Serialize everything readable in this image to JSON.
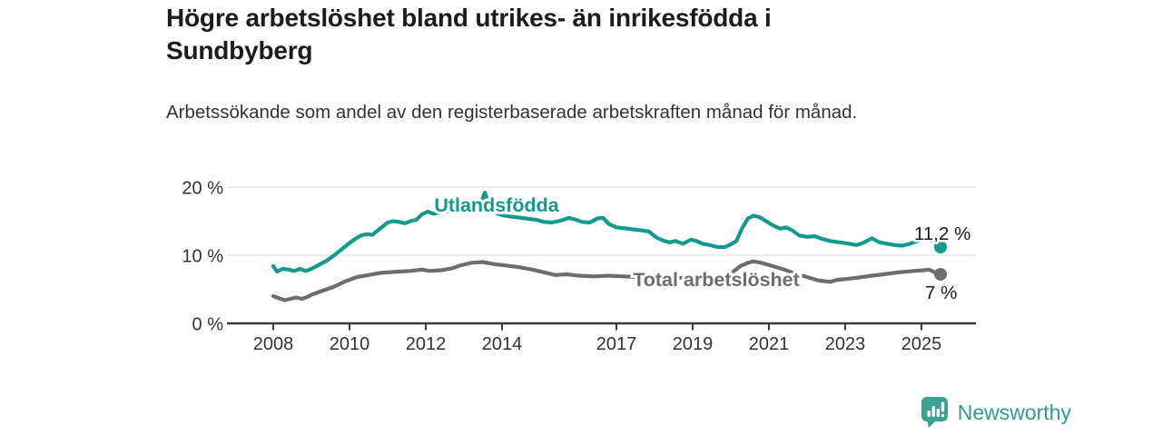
{
  "header": {
    "title": "Högre arbetslöshet bland utrikes- än inrikesfödda i Sundbyberg",
    "subtitle": "Arbetssökande som andel av den registerbaserade arbetskraften månad för månad."
  },
  "theme": {
    "teal": "#149a8c",
    "gray": "#6d6d6d",
    "axis": "#3a3a3a",
    "grid": "#e4e4e4",
    "tick_text": "#333333",
    "annotation_text": "#1a1a1a",
    "logo_icon_color": "#3ba191",
    "brand_text_color": "#2f9c8d"
  },
  "footer": {
    "brand": "Newsworthy",
    "logo_icon": "bar-chart-speech-bubble-icon"
  },
  "chart_data": {
    "type": "line",
    "title": "Högre arbetslöshet bland utrikes- än inrikesfödda i Sundbyberg",
    "subtitle": "Arbetssökande som andel av den registerbaserade arbetskraften månad för månad.",
    "unit": "%",
    "grid": true,
    "legend_position": "inline-labels",
    "x_axis": {
      "ticks": [
        2008,
        2010,
        2012,
        2014,
        2017,
        2019,
        2021,
        2023,
        2025
      ],
      "labels": [
        "2008",
        "2010",
        "2012",
        "2014",
        "2017",
        "2019",
        "2021",
        "2023",
        "2025"
      ],
      "range_years": [
        2007.8,
        2026.4
      ]
    },
    "y_axis": {
      "ticks": [
        0,
        10,
        20
      ],
      "labels": [
        "0 %",
        "10 %",
        "20 %"
      ],
      "range": [
        0,
        20
      ],
      "gridlines": [
        10,
        20
      ]
    },
    "series": [
      {
        "name": "Utlandsfödda",
        "color": "#149a8c",
        "end_label": "11,2 %",
        "end_value": 11.2,
        "points": [
          [
            2008.0,
            8.4
          ],
          [
            2008.1,
            7.6
          ],
          [
            2008.25,
            8.0
          ],
          [
            2008.4,
            7.9
          ],
          [
            2008.55,
            7.7
          ],
          [
            2008.7,
            8.0
          ],
          [
            2008.85,
            7.7
          ],
          [
            2009.0,
            8.0
          ],
          [
            2009.2,
            8.6
          ],
          [
            2009.4,
            9.2
          ],
          [
            2009.6,
            10.0
          ],
          [
            2009.8,
            10.9
          ],
          [
            2010.0,
            11.8
          ],
          [
            2010.15,
            12.4
          ],
          [
            2010.3,
            12.9
          ],
          [
            2010.45,
            13.1
          ],
          [
            2010.6,
            13.0
          ],
          [
            2010.8,
            13.9
          ],
          [
            2011.0,
            14.8
          ],
          [
            2011.15,
            15.0
          ],
          [
            2011.3,
            14.9
          ],
          [
            2011.45,
            14.7
          ],
          [
            2011.6,
            15.0
          ],
          [
            2011.75,
            15.2
          ],
          [
            2011.9,
            16.0
          ],
          [
            2012.05,
            16.4
          ],
          [
            2012.2,
            16.1
          ],
          [
            2012.4,
            16.3
          ],
          [
            2012.6,
            16.5
          ],
          [
            2012.8,
            16.4
          ],
          [
            2013.0,
            16.6
          ],
          [
            2013.2,
            16.5
          ],
          [
            2013.4,
            16.9
          ],
          [
            2013.55,
            19.2
          ],
          [
            2013.7,
            17.0
          ],
          [
            2013.85,
            16.2
          ],
          [
            2014.0,
            15.9
          ],
          [
            2014.2,
            15.7
          ],
          [
            2014.5,
            15.5
          ],
          [
            2014.9,
            15.2
          ],
          [
            2015.1,
            14.9
          ],
          [
            2015.3,
            14.8
          ],
          [
            2015.55,
            15.1
          ],
          [
            2015.75,
            15.5
          ],
          [
            2015.95,
            15.2
          ],
          [
            2016.1,
            14.9
          ],
          [
            2016.3,
            14.8
          ],
          [
            2016.5,
            15.4
          ],
          [
            2016.65,
            15.5
          ],
          [
            2016.8,
            14.6
          ],
          [
            2017.0,
            14.1
          ],
          [
            2017.3,
            13.9
          ],
          [
            2017.6,
            13.7
          ],
          [
            2017.85,
            13.5
          ],
          [
            2018.05,
            12.6
          ],
          [
            2018.25,
            12.1
          ],
          [
            2018.4,
            11.9
          ],
          [
            2018.55,
            12.1
          ],
          [
            2018.75,
            11.7
          ],
          [
            2018.95,
            12.3
          ],
          [
            2019.1,
            12.1
          ],
          [
            2019.25,
            11.7
          ],
          [
            2019.45,
            11.5
          ],
          [
            2019.65,
            11.2
          ],
          [
            2019.85,
            11.2
          ],
          [
            2020.0,
            11.6
          ],
          [
            2020.15,
            12.1
          ],
          [
            2020.3,
            14.0
          ],
          [
            2020.45,
            15.4
          ],
          [
            2020.6,
            15.8
          ],
          [
            2020.75,
            15.6
          ],
          [
            2020.9,
            15.1
          ],
          [
            2021.1,
            14.4
          ],
          [
            2021.3,
            13.9
          ],
          [
            2021.45,
            14.1
          ],
          [
            2021.6,
            13.7
          ],
          [
            2021.8,
            12.9
          ],
          [
            2022.0,
            12.7
          ],
          [
            2022.2,
            12.8
          ],
          [
            2022.4,
            12.4
          ],
          [
            2022.6,
            12.1
          ],
          [
            2022.85,
            11.9
          ],
          [
            2023.1,
            11.7
          ],
          [
            2023.3,
            11.5
          ],
          [
            2023.5,
            11.9
          ],
          [
            2023.7,
            12.5
          ],
          [
            2023.9,
            11.9
          ],
          [
            2024.1,
            11.7
          ],
          [
            2024.3,
            11.5
          ],
          [
            2024.5,
            11.4
          ],
          [
            2024.7,
            11.7
          ],
          [
            2024.9,
            12.1
          ],
          [
            2025.1,
            12.4
          ],
          [
            2025.25,
            12.2
          ],
          [
            2025.4,
            11.6
          ],
          [
            2025.5,
            11.2
          ]
        ]
      },
      {
        "name": "Total arbetslöshet",
        "color": "#6d6d6d",
        "end_label": "7 %",
        "end_value": 7.2,
        "points": [
          [
            2008.0,
            4.0
          ],
          [
            2008.15,
            3.7
          ],
          [
            2008.3,
            3.4
          ],
          [
            2008.45,
            3.6
          ],
          [
            2008.6,
            3.8
          ],
          [
            2008.75,
            3.6
          ],
          [
            2008.9,
            3.9
          ],
          [
            2009.0,
            4.2
          ],
          [
            2009.3,
            4.8
          ],
          [
            2009.6,
            5.4
          ],
          [
            2009.9,
            6.2
          ],
          [
            2010.2,
            6.8
          ],
          [
            2010.5,
            7.1
          ],
          [
            2010.8,
            7.4
          ],
          [
            2011.0,
            7.5
          ],
          [
            2011.3,
            7.6
          ],
          [
            2011.6,
            7.7
          ],
          [
            2011.9,
            7.9
          ],
          [
            2012.1,
            7.7
          ],
          [
            2012.4,
            7.8
          ],
          [
            2012.7,
            8.1
          ],
          [
            2012.9,
            8.5
          ],
          [
            2013.2,
            8.9
          ],
          [
            2013.5,
            9.0
          ],
          [
            2013.8,
            8.7
          ],
          [
            2014.1,
            8.5
          ],
          [
            2014.4,
            8.3
          ],
          [
            2014.8,
            7.9
          ],
          [
            2015.1,
            7.5
          ],
          [
            2015.4,
            7.1
          ],
          [
            2015.7,
            7.2
          ],
          [
            2016.0,
            7.0
          ],
          [
            2016.4,
            6.9
          ],
          [
            2016.8,
            7.0
          ],
          [
            2017.2,
            6.9
          ],
          [
            2017.6,
            6.8
          ],
          [
            2018.0,
            6.8
          ],
          [
            2018.4,
            6.7
          ],
          [
            2018.8,
            6.7
          ],
          [
            2019.2,
            6.8
          ],
          [
            2019.6,
            6.9
          ],
          [
            2020.0,
            7.3
          ],
          [
            2020.25,
            8.4
          ],
          [
            2020.45,
            8.9
          ],
          [
            2020.6,
            9.1
          ],
          [
            2020.8,
            8.9
          ],
          [
            2021.1,
            8.4
          ],
          [
            2021.4,
            7.9
          ],
          [
            2021.7,
            7.3
          ],
          [
            2022.0,
            6.8
          ],
          [
            2022.3,
            6.3
          ],
          [
            2022.6,
            6.1
          ],
          [
            2022.8,
            6.4
          ],
          [
            2023.0,
            6.5
          ],
          [
            2023.3,
            6.7
          ],
          [
            2023.7,
            7.0
          ],
          [
            2024.0,
            7.2
          ],
          [
            2024.4,
            7.5
          ],
          [
            2024.8,
            7.7
          ],
          [
            2025.05,
            7.8
          ],
          [
            2025.2,
            7.9
          ],
          [
            2025.35,
            7.5
          ],
          [
            2025.5,
            7.2
          ]
        ]
      }
    ]
  }
}
